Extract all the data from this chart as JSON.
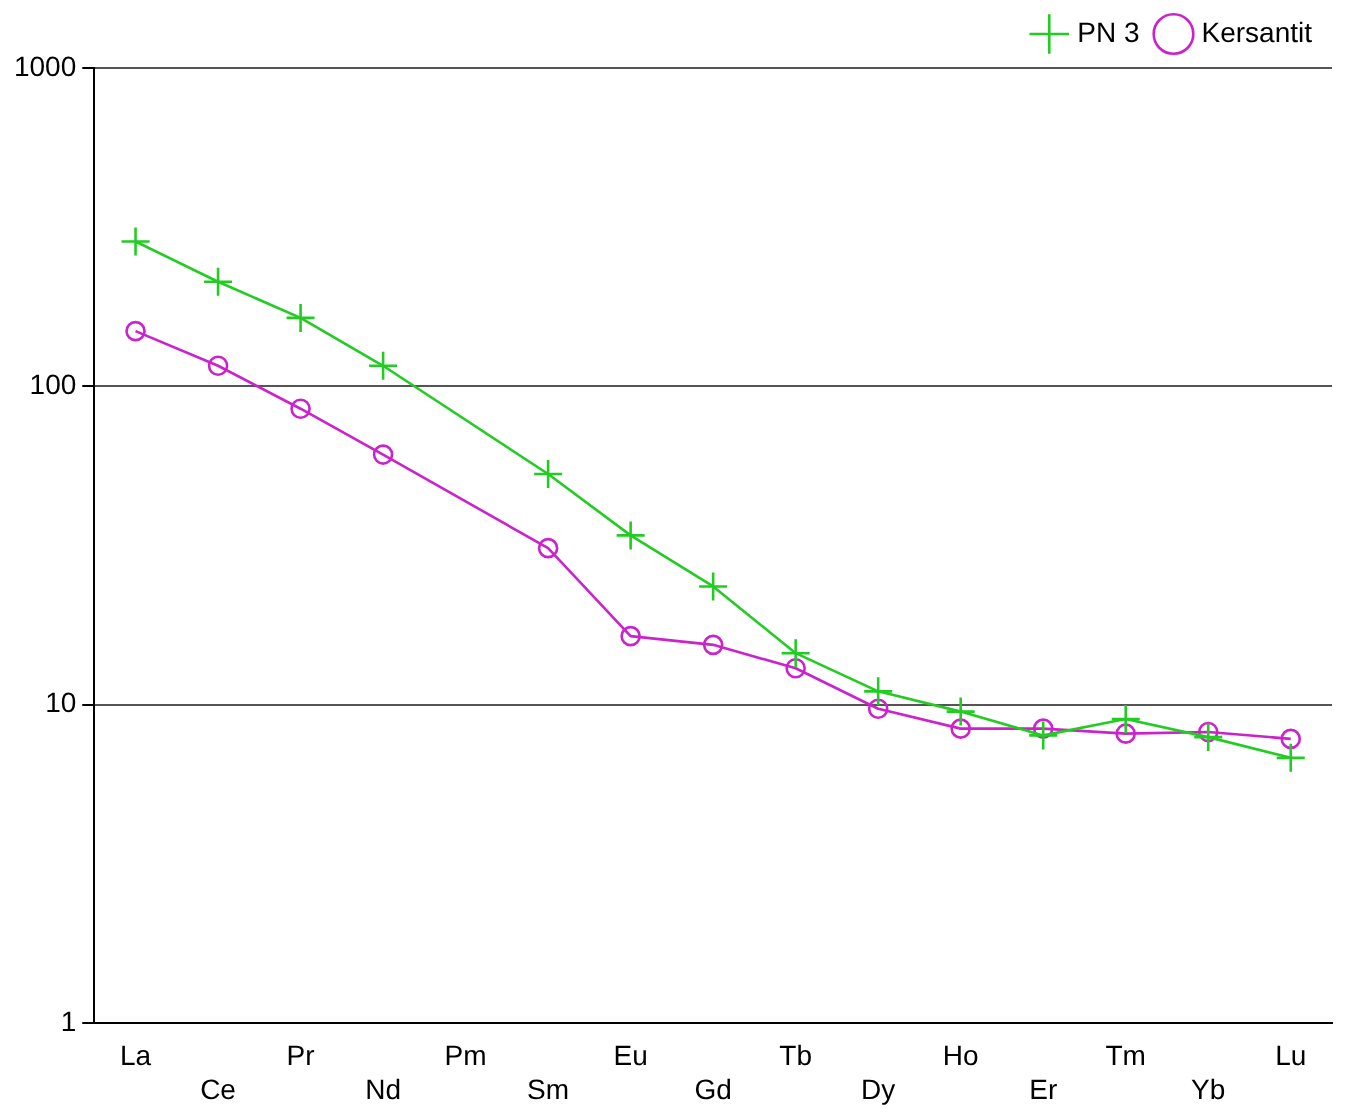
{
  "chart_data": {
    "type": "line",
    "categories": [
      "La",
      "Ce",
      "Pr",
      "Nd",
      "Pm",
      "Sm",
      "Eu",
      "Gd",
      "Tb",
      "Dy",
      "Ho",
      "Er",
      "Tm",
      "Yb",
      "Lu"
    ],
    "series": [
      {
        "name": "PN 3",
        "color": "#22cc22",
        "marker": "cross",
        "values": [
          285,
          213,
          164,
          116,
          null,
          53,
          34,
          23.5,
          14.5,
          11,
          9.5,
          8.0,
          9.0,
          7.9,
          6.8
        ]
      },
      {
        "name": "Kersantit",
        "color": "#cc22cc",
        "marker": "circle",
        "values": [
          149,
          116,
          85,
          61,
          null,
          31,
          16.4,
          15.4,
          13,
          9.7,
          8.4,
          8.4,
          8.1,
          8.2,
          7.8
        ]
      }
    ],
    "log": "y",
    "ylim": [
      1,
      1000
    ],
    "yticks": [
      1,
      10,
      100,
      1000
    ],
    "grid": "y",
    "legend": "top right",
    "line_style": "solid"
  }
}
